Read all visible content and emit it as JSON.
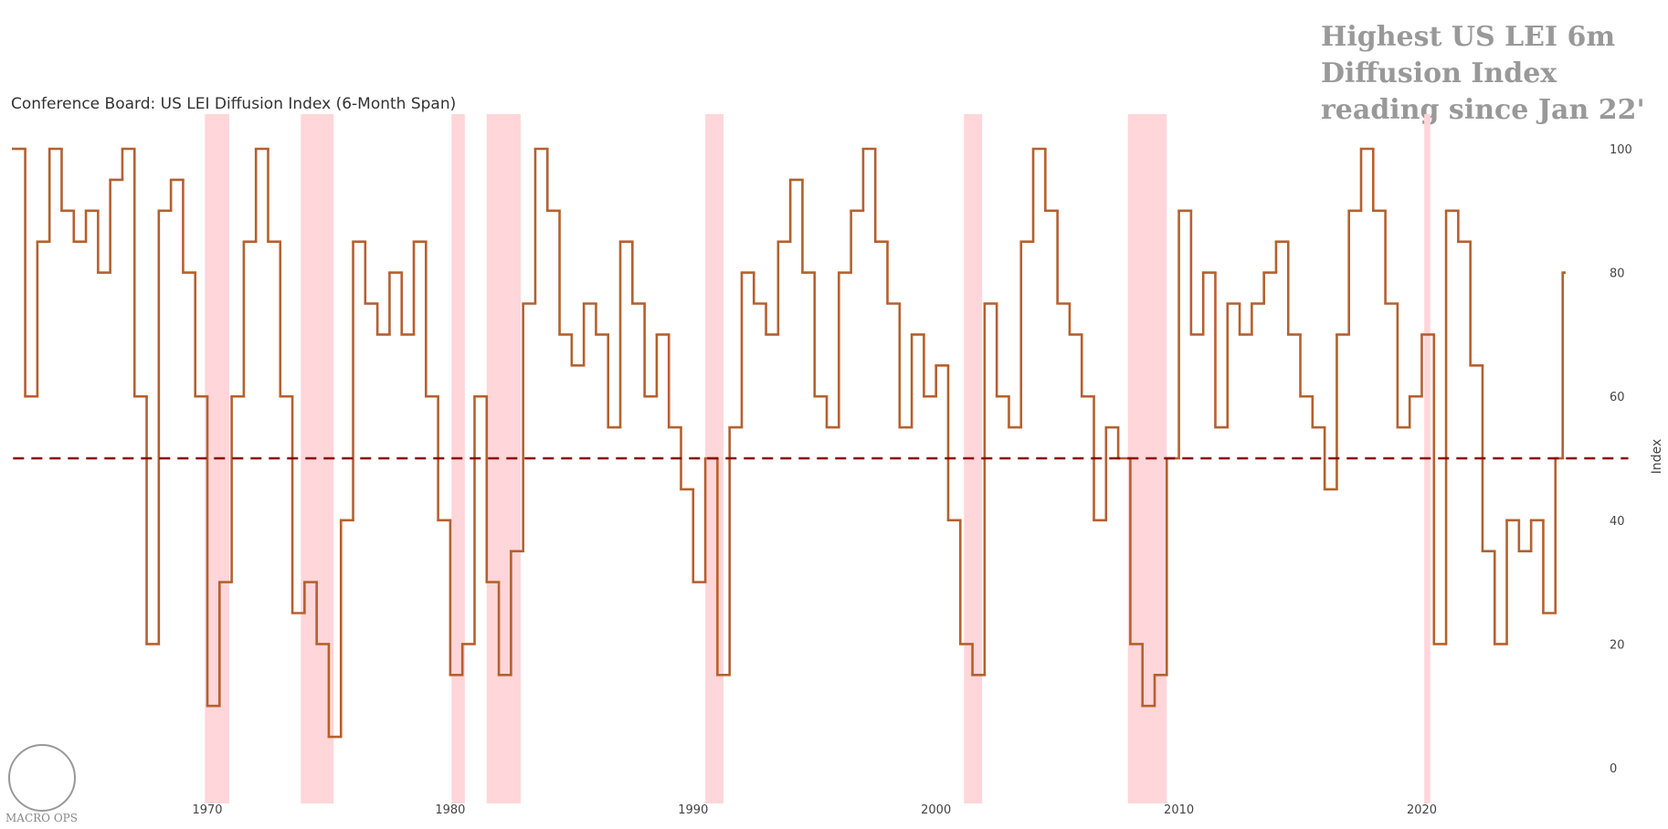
{
  "chart_data": {
    "type": "step",
    "title": "Conference Board: US LEI Diffusion Index (6-Month Span)",
    "annotation": [
      "Highest US LEI 6m",
      "Diffusion Index",
      "reading since Jan 22'"
    ],
    "y_axis_label": "Index",
    "logo_text": "MACRO OPS",
    "xlim": [
      1962,
      2028.5
    ],
    "xticks": [
      1970,
      1980,
      1990,
      2000,
      2010,
      2020
    ],
    "ylim": [
      0,
      100
    ],
    "yticks": [
      0,
      20,
      40,
      60,
      80,
      100
    ],
    "reference_line": 50,
    "reference_color": "#8b0000",
    "recession_color": "#ffd6d9",
    "recessions": [
      [
        1969.9,
        1970.9
      ],
      [
        1973.85,
        1975.2
      ],
      [
        1980.05,
        1980.6
      ],
      [
        1981.5,
        1982.9
      ],
      [
        1990.5,
        1991.25
      ],
      [
        2001.15,
        2001.9
      ],
      [
        2007.9,
        2009.5
      ],
      [
        2020.1,
        2020.35
      ]
    ],
    "series": [
      {
        "name": "Index",
        "color": "#b5602f",
        "x": [
          1962.0,
          1962.5,
          1963.0,
          1963.5,
          1964.0,
          1964.5,
          1965.0,
          1965.5,
          1966.0,
          1966.5,
          1967.0,
          1967.5,
          1968.0,
          1968.5,
          1969.0,
          1969.5,
          1970.0,
          1970.5,
          1971.0,
          1971.5,
          1972.0,
          1972.5,
          1973.0,
          1973.5,
          1974.0,
          1974.5,
          1975.0,
          1975.5,
          1976.0,
          1976.5,
          1977.0,
          1977.5,
          1978.0,
          1978.5,
          1979.0,
          1979.5,
          1980.0,
          1980.5,
          1981.0,
          1981.5,
          1982.0,
          1982.5,
          1983.0,
          1983.5,
          1984.0,
          1984.5,
          1985.0,
          1985.5,
          1986.0,
          1986.5,
          1987.0,
          1987.5,
          1988.0,
          1988.5,
          1989.0,
          1989.5,
          1990.0,
          1990.5,
          1991.0,
          1991.5,
          1992.0,
          1992.5,
          1993.0,
          1993.5,
          1994.0,
          1994.5,
          1995.0,
          1995.5,
          1996.0,
          1996.5,
          1997.0,
          1997.5,
          1998.0,
          1998.5,
          1999.0,
          1999.5,
          2000.0,
          2000.5,
          2001.0,
          2001.5,
          2002.0,
          2002.5,
          2003.0,
          2003.5,
          2004.0,
          2004.5,
          2005.0,
          2005.5,
          2006.0,
          2006.5,
          2007.0,
          2007.5,
          2008.0,
          2008.5,
          2009.0,
          2009.5,
          2010.0,
          2010.5,
          2011.0,
          2011.5,
          2012.0,
          2012.5,
          2013.0,
          2013.5,
          2014.0,
          2014.5,
          2015.0,
          2015.5,
          2016.0,
          2016.5,
          2017.0,
          2017.5,
          2018.0,
          2018.5,
          2019.0,
          2019.5,
          2020.0,
          2020.5,
          2021.0,
          2021.5,
          2022.0,
          2022.5,
          2023.0,
          2023.5,
          2024.0,
          2024.5,
          2025.0,
          2025.5,
          2025.8
        ],
        "values": [
          100,
          60,
          85,
          100,
          90,
          85,
          90,
          80,
          95,
          100,
          60,
          20,
          90,
          95,
          80,
          60,
          10,
          30,
          60,
          85,
          100,
          85,
          60,
          25,
          30,
          20,
          5,
          40,
          85,
          75,
          70,
          80,
          70,
          85,
          60,
          40,
          15,
          20,
          60,
          30,
          15,
          35,
          75,
          100,
          90,
          70,
          65,
          75,
          70,
          55,
          85,
          75,
          60,
          70,
          55,
          45,
          30,
          50,
          15,
          55,
          80,
          75,
          70,
          85,
          95,
          80,
          60,
          55,
          80,
          90,
          100,
          85,
          75,
          55,
          70,
          60,
          65,
          40,
          20,
          15,
          75,
          60,
          55,
          85,
          100,
          90,
          75,
          70,
          60,
          40,
          55,
          50,
          20,
          10,
          15,
          50,
          90,
          70,
          80,
          55,
          75,
          70,
          75,
          80,
          85,
          70,
          60,
          55,
          45,
          70,
          90,
          100,
          90,
          75,
          55,
          60,
          70,
          20,
          90,
          85,
          65,
          35,
          20,
          40,
          35,
          40,
          25,
          50,
          80
        ]
      }
    ]
  }
}
